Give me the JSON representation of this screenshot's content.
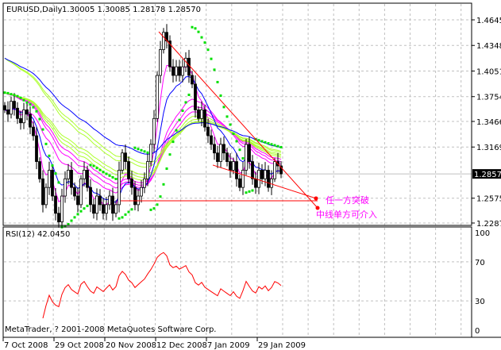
{
  "chart_data": {
    "type": "candlestick",
    "symbol_label": "EURUSD,Daily",
    "ohlc_label": "1.30005 1.30085 1.28178 1.28570",
    "current_price": 1.2857,
    "current_price_label": "1.28570",
    "price_ticks": [
      "1.46450",
      "1.43480",
      "1.40510",
      "1.37540",
      "1.34660",
      "1.31690",
      "1.25750",
      "1.22870"
    ],
    "price_tick_values": [
      1.4645,
      1.4348,
      1.4051,
      1.3754,
      1.3466,
      1.3169,
      1.2575,
      1.2287
    ],
    "ylim": [
      1.2287,
      1.4645
    ],
    "date_ticks": [
      "7 Oct 2008",
      "29 Oct 2008",
      "20 Nov 2008",
      "12 Dec 2008",
      "7 Jan 2009",
      "29 Jan 2009"
    ],
    "date_tick_bars": [
      0,
      16,
      32,
      48,
      64,
      80
    ],
    "closes": [
      1.36,
      1.355,
      1.37,
      1.362,
      1.35,
      1.345,
      1.36,
      1.355,
      1.34,
      1.33,
      1.3,
      1.28,
      1.25,
      1.27,
      1.29,
      1.26,
      1.24,
      1.23,
      1.26,
      1.28,
      1.29,
      1.27,
      1.26,
      1.25,
      1.28,
      1.29,
      1.27,
      1.25,
      1.24,
      1.26,
      1.25,
      1.24,
      1.25,
      1.26,
      1.24,
      1.25,
      1.29,
      1.31,
      1.3,
      1.28,
      1.27,
      1.25,
      1.26,
      1.27,
      1.28,
      1.3,
      1.32,
      1.35,
      1.4,
      1.43,
      1.45,
      1.44,
      1.41,
      1.4,
      1.41,
      1.4,
      1.41,
      1.42,
      1.4,
      1.39,
      1.36,
      1.35,
      1.36,
      1.34,
      1.33,
      1.32,
      1.31,
      1.3,
      1.32,
      1.31,
      1.3,
      1.29,
      1.3,
      1.28,
      1.27,
      1.29,
      1.32,
      1.3,
      1.28,
      1.27,
      1.29,
      1.28,
      1.29,
      1.27,
      1.28,
      1.3,
      1.295,
      1.2857
    ],
    "moving_averages": [
      {
        "color": "#ff00ff",
        "periods": [
          5,
          20,
          24,
          28
        ]
      },
      {
        "color": "#adff2f",
        "periods": [
          32,
          36,
          40,
          44,
          48
        ]
      },
      {
        "color": "#0000ff",
        "periods": [
          10,
          60
        ]
      }
    ],
    "sar_color": "#00e000",
    "trendlines": [
      {
        "from": [
          48.5,
          1.4507
        ],
        "to": [
          98.5,
          1.2462
        ],
        "color": "#ff0000",
        "end_dot": true
      },
      {
        "from": [
          65.5,
          1.296
        ],
        "to": [
          98,
          1.2573
        ],
        "color": "#ff0000",
        "end_dot": true
      },
      {
        "from": [
          36.5,
          1.2545
        ],
        "to": [
          98.5,
          1.2545
        ],
        "color": "#ff0000",
        "end_dot": false
      }
    ],
    "annotations": [
      "任一方突破",
      "中线单方可介入"
    ],
    "rsi": {
      "label": "RSI(12) 42.0450",
      "period": 12,
      "ticks": [
        "100",
        "70",
        "30",
        "0"
      ],
      "tick_values": [
        100,
        70,
        30,
        0
      ],
      "color": "#ff0000"
    },
    "grid": true
  },
  "footer": {
    "copyright": "MetaTrader, ? 2001-2008 MetaQuotes Software Corp."
  }
}
